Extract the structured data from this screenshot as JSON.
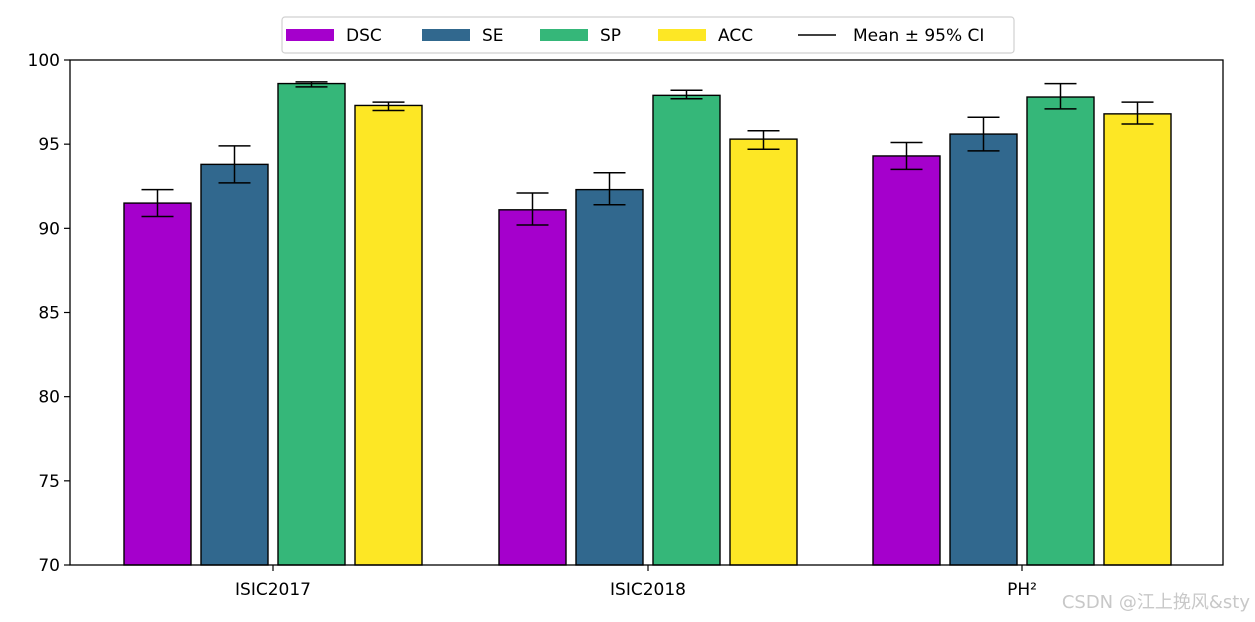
{
  "chart_data": {
    "type": "bar",
    "title": "",
    "xlabel": "",
    "ylabel": "",
    "ylim": [
      70,
      100
    ],
    "yticks": [
      70,
      75,
      80,
      85,
      90,
      95,
      100
    ],
    "grid": false,
    "legend_position": "top-center",
    "categories": [
      "ISIC2017",
      "ISIC2018",
      "PH²"
    ],
    "series": [
      {
        "name": "DSC",
        "color": "#a500cc",
        "values": [
          91.5,
          91.1,
          94.3
        ],
        "ci_low": [
          90.7,
          90.2,
          93.5
        ],
        "ci_high": [
          92.3,
          92.1,
          95.1
        ]
      },
      {
        "name": "SE",
        "color": "#31688e",
        "values": [
          93.8,
          92.3,
          95.6
        ],
        "ci_low": [
          92.7,
          91.4,
          94.6
        ],
        "ci_high": [
          94.9,
          93.3,
          96.6
        ]
      },
      {
        "name": "SP",
        "color": "#35b779",
        "values": [
          98.6,
          97.9,
          97.8
        ],
        "ci_low": [
          98.4,
          97.7,
          97.1
        ],
        "ci_high": [
          98.7,
          98.2,
          98.6
        ]
      },
      {
        "name": "ACC",
        "color": "#fde725",
        "values": [
          97.3,
          95.3,
          96.8
        ],
        "ci_low": [
          97.0,
          94.7,
          96.2
        ],
        "ci_high": [
          97.5,
          95.8,
          97.5
        ]
      }
    ],
    "legend": {
      "entries": [
        "DSC",
        "SE",
        "SP",
        "ACC"
      ],
      "errorbar_label": "Mean ± 95% CI"
    }
  },
  "watermark": "CSDN @江上挽风&sty"
}
